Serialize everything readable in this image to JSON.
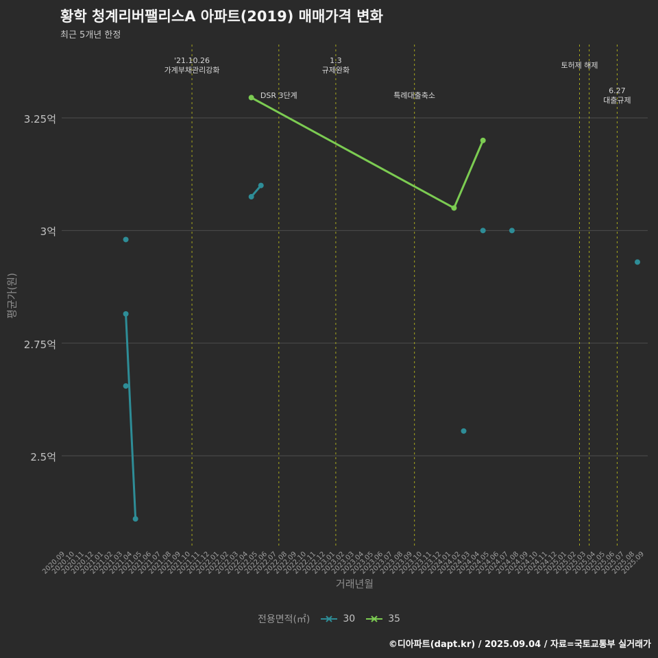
{
  "title": "황학 청계리버팰리스A 아파트(2019) 매매가격 변화",
  "subtitle": "최근 5개년 한정",
  "footer": "©디아파트(dapt.kr) / 2025.09.04 / 자료=국토교통부 실거래가",
  "colors": {
    "background": "#2a2a2a",
    "grid": "#4d4d4d",
    "annotation_line": "#a9a91c",
    "annotation_text": "#d8d8d8",
    "tick_text": "#9f9f9f",
    "axis_title": "#8d8d8d",
    "title_text": "#f4f4f4",
    "footer_text": "#fafafa",
    "series_30": "#2e8d97",
    "series_35": "#7ccc52"
  },
  "y_axis": {
    "title": "평균가(원)",
    "ticks": [
      {
        "label": "3.25억",
        "value": 3.25
      },
      {
        "label": "3억",
        "value": 3.0
      },
      {
        "label": "2.75억",
        "value": 2.75
      },
      {
        "label": "2.5억",
        "value": 2.5
      }
    ]
  },
  "x_axis": {
    "title": "거래년월",
    "ticks": [
      "2020.09",
      "2020.10",
      "2020.11",
      "2020.12",
      "2021.01",
      "2021.02",
      "2021.03",
      "2021.04",
      "2021.05",
      "2021.06",
      "2021.07",
      "2021.08",
      "2021.09",
      "2021.10",
      "2021.11",
      "2021.12",
      "2022.01",
      "2022.02",
      "2022.03",
      "2022.04",
      "2022.05",
      "2022.06",
      "2022.07",
      "2022.08",
      "2022.09",
      "2022.10",
      "2022.11",
      "2022.12",
      "2023.01",
      "2023.02",
      "2023.03",
      "2023.04",
      "2023.05",
      "2023.06",
      "2023.07",
      "2023.08",
      "2023.09",
      "2023.10",
      "2023.11",
      "2023.12",
      "2024.01",
      "2024.02",
      "2024.03",
      "2024.04",
      "2024.05",
      "2024.06",
      "2024.07",
      "2024.08",
      "2024.09",
      "2024.10",
      "2024.11",
      "2024.12",
      "2025.01",
      "2025.02",
      "2025.03",
      "2025.04",
      "2025.05",
      "2025.06",
      "2025.07",
      "2025.08",
      "2025.09"
    ]
  },
  "legend": {
    "title": "전용면적(㎡)",
    "items": [
      {
        "label": "30",
        "color": "#2e8d97"
      },
      {
        "label": "35",
        "color": "#7ccc52"
      }
    ]
  },
  "chart_data": {
    "type": "line",
    "unit": "억원",
    "title": "황학 청계리버팰리스A 아파트(2019) 매매가격 변화",
    "xlabel": "거래년월",
    "ylabel": "평균가(원)",
    "x_range": [
      "2020.09",
      "2025.09"
    ],
    "ylim": [
      2.29,
      3.41
    ],
    "grid": "horizontal",
    "legend_position": "bottom-center",
    "series": [
      {
        "name": "30",
        "color": "#2e8d97",
        "points": [
          {
            "x": "2021.04",
            "y": 2.98
          },
          {
            "x": "2021.04",
            "y": 2.815,
            "seg": "a"
          },
          {
            "x": "2021.05",
            "y": 2.36,
            "seg": "a"
          },
          {
            "x": "2021.04",
            "y": 2.655
          },
          {
            "x": "2022.05",
            "y": 3.075,
            "seg": "b"
          },
          {
            "x": "2022.06",
            "y": 3.1,
            "seg": "b"
          },
          {
            "x": "2024.03",
            "y": 2.555
          },
          {
            "x": "2024.05",
            "y": 3.0
          },
          {
            "x": "2024.08",
            "y": 3.0
          },
          {
            "x": "2025.09",
            "y": 2.93
          }
        ]
      },
      {
        "name": "35",
        "color": "#7ccc52",
        "points": [
          {
            "x": "2022.05",
            "y": 3.295,
            "seg": "a"
          },
          {
            "x": "2024.02",
            "y": 3.05,
            "seg": "a"
          },
          {
            "x": "2024.05",
            "y": 3.2,
            "seg": "a"
          }
        ]
      }
    ],
    "annotations": [
      {
        "label_lines": [
          "'21.10.26",
          "가계부채관리강화"
        ],
        "x": "2021.10",
        "x_offset": 0.85,
        "label_level": "top"
      },
      {
        "label_lines": [
          "DSR 3단계"
        ],
        "x": "2022.07",
        "x_offset": 0.85,
        "label_level": "mid"
      },
      {
        "label_lines": [
          "1.3",
          "규제완화"
        ],
        "x": "2023.01",
        "x_offset": 0.75,
        "label_level": "top"
      },
      {
        "label_lines": [
          "특례대출축소"
        ],
        "x": "2023.09",
        "x_offset": 0.9,
        "label_level": "mid"
      },
      {
        "label_lines": [
          "토허제 해제"
        ],
        "x": "2025.03",
        "x_offset": 0,
        "label_level": "top"
      },
      {
        "label_lines": [],
        "x": "2025.04",
        "x_offset": 0,
        "label_level": "top"
      },
      {
        "label_lines": [
          "6.27",
          "대출규제"
        ],
        "x": "2025.06",
        "x_offset": 0.9,
        "label_level": "mid"
      }
    ]
  }
}
